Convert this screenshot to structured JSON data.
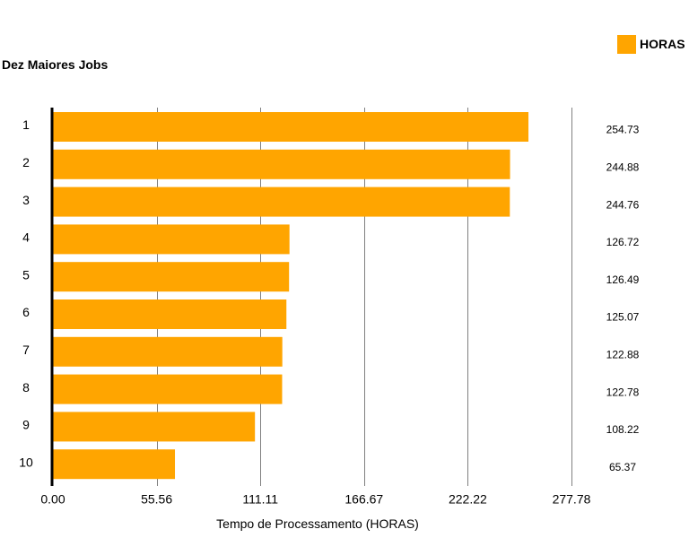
{
  "chart_data": {
    "type": "bar",
    "orientation": "horizontal",
    "title": "Dez Maiores Jobs",
    "xlabel": "Tempo de Processamento (HORAS)",
    "ylabel": "",
    "categories": [
      "1",
      "2",
      "3",
      "4",
      "5",
      "6",
      "7",
      "8",
      "9",
      "10"
    ],
    "series": [
      {
        "name": "HORAS",
        "values": [
          254.73,
          244.88,
          244.76,
          126.72,
          126.49,
          125.07,
          122.88,
          122.78,
          108.22,
          65.37
        ],
        "value_labels": [
          "254.73",
          "244.88",
          "244.76",
          "126.72",
          "126.49",
          "125.07",
          "122.88",
          "122.78",
          "108.22",
          "65.37"
        ]
      }
    ],
    "xlim": [
      0,
      277.78
    ],
    "x_ticks": [
      0,
      55.56,
      111.11,
      166.67,
      222.22,
      277.78
    ],
    "x_tick_labels": [
      "0.00",
      "55.56",
      "111.11",
      "166.67",
      "222.22",
      "277.78"
    ],
    "grid": true,
    "legend_position": "top-right",
    "colors": {
      "bar": "#FFA500",
      "grid": "#808080",
      "axis": "#000000",
      "text": "#000000"
    }
  }
}
